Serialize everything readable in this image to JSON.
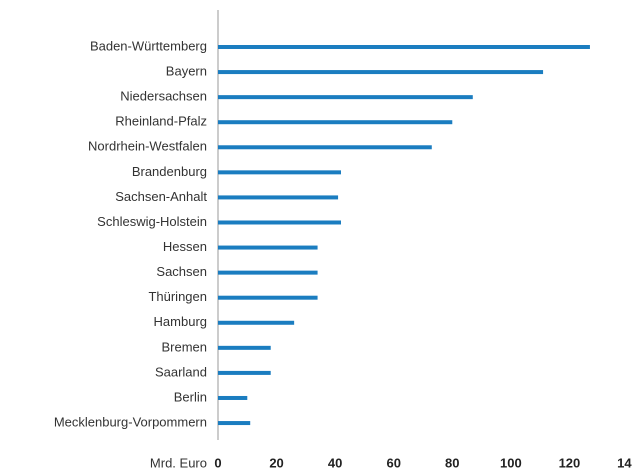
{
  "chart_data": {
    "type": "barh",
    "categories": [
      "Baden-Württemberg",
      "Bayern",
      "Niedersachsen",
      "Rheinland-Pfalz",
      "Nordrhein-Westfalen",
      "Brandenburg",
      "Sachsen-Anhalt",
      "Schleswig-Holstein",
      "Hessen",
      "Sachsen",
      "Thüringen",
      "Hamburg",
      "Bremen",
      "Saarland",
      "Berlin",
      "Mecklenburg-Vorpommern"
    ],
    "values": [
      127,
      111,
      87,
      80,
      73,
      42,
      41,
      42,
      34,
      34,
      34,
      26,
      18,
      18,
      10,
      11
    ],
    "color": "#1b7dc0",
    "x_label": "Mrd. Euro",
    "xlim": [
      0,
      140
    ],
    "xticks": [
      0,
      20,
      40,
      60,
      80,
      100,
      120,
      140
    ],
    "grid": false
  }
}
